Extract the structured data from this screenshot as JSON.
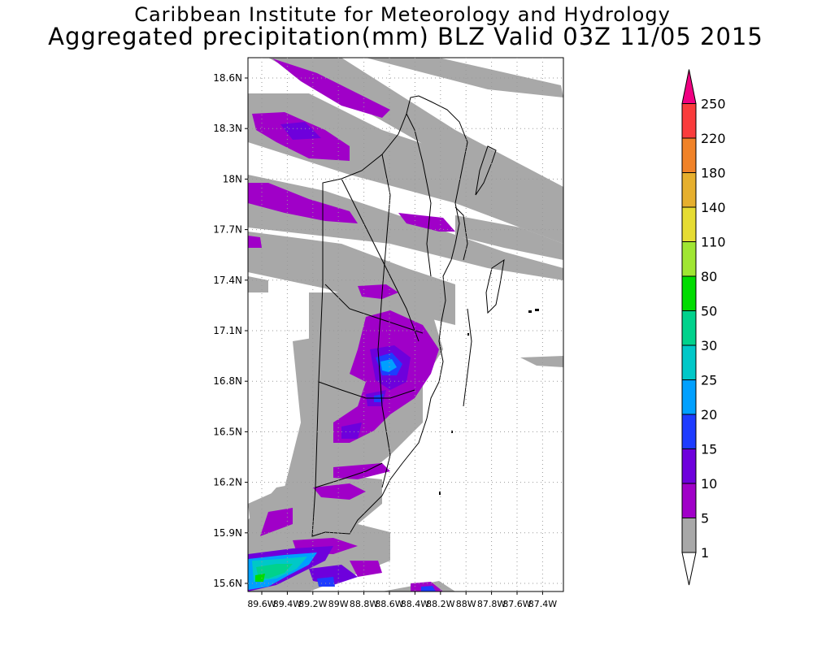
{
  "header": {
    "institute": "Caribbean Institute for Meteorology and Hydrology",
    "product": "Aggregated precipitation(mm) BLZ Valid 03Z 11/05 2015"
  },
  "map": {
    "lat_ticks": [
      "18.6N",
      "18.3N",
      "18N",
      "17.7N",
      "17.4N",
      "17.1N",
      "16.8N",
      "16.5N",
      "16.2N",
      "15.9N",
      "15.6N"
    ],
    "lon_ticks": [
      "89.6W",
      "89.4W",
      "89.2W",
      "89W",
      "88.8W",
      "88.6W",
      "88.4W",
      "88.2W",
      "88W",
      "87.8W",
      "87.6W",
      "87.4W"
    ]
  },
  "colorbar": {
    "labels": [
      "1",
      "5",
      "10",
      "15",
      "20",
      "25",
      "30",
      "50",
      "80",
      "110",
      "140",
      "180",
      "220",
      "250"
    ],
    "colors": [
      "#ffffff",
      "#a8a8a8",
      "#a000c8",
      "#6e00dc",
      "#1e3cff",
      "#00a0ff",
      "#00c8c8",
      "#00d28c",
      "#00dc00",
      "#a0e632",
      "#e6dc32",
      "#e6af2d",
      "#f08228",
      "#fa3c3c",
      "#f00082"
    ]
  }
}
